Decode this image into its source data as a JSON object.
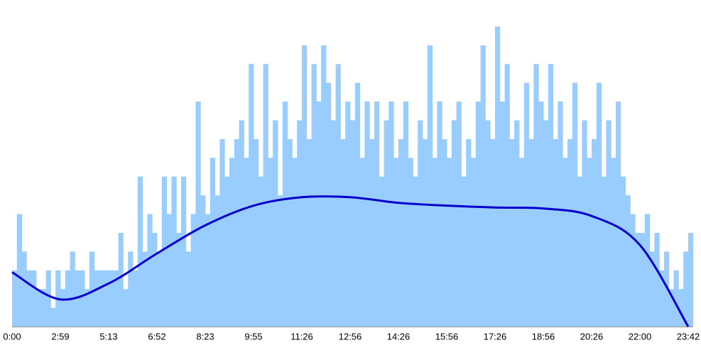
{
  "chart_data": {
    "type": "bar",
    "categories": [
      "0:00",
      null,
      null,
      null,
      null,
      null,
      null,
      null,
      null,
      null,
      "2:59",
      null,
      null,
      null,
      null,
      null,
      null,
      null,
      null,
      null,
      "5:13",
      null,
      null,
      null,
      null,
      null,
      null,
      null,
      null,
      null,
      "6:52",
      null,
      null,
      null,
      null,
      null,
      null,
      null,
      null,
      null,
      "8:23",
      null,
      null,
      null,
      null,
      null,
      null,
      null,
      null,
      null,
      "9:55",
      null,
      null,
      null,
      null,
      null,
      null,
      null,
      null,
      null,
      "11:26",
      null,
      null,
      null,
      null,
      null,
      null,
      null,
      null,
      null,
      "12:56",
      null,
      null,
      null,
      null,
      null,
      null,
      null,
      null,
      null,
      "14:26",
      null,
      null,
      null,
      null,
      null,
      null,
      null,
      null,
      null,
      "15:56",
      null,
      null,
      null,
      null,
      null,
      null,
      null,
      null,
      null,
      "17:26",
      null,
      null,
      null,
      null,
      null,
      null,
      null,
      null,
      null,
      "18:56",
      null,
      null,
      null,
      null,
      null,
      null,
      null,
      null,
      null,
      "20:26",
      null,
      null,
      null,
      null,
      null,
      null,
      null,
      null,
      null,
      "22:00",
      null,
      null,
      null,
      null,
      null,
      null,
      null,
      null,
      null,
      "23:42"
    ],
    "series": [
      {
        "color": "#99ccff",
        "values": [
          3,
          6,
          4,
          3,
          3,
          2,
          2,
          3,
          1,
          3,
          2,
          3,
          4,
          3,
          3,
          2,
          4,
          3,
          3,
          3,
          3,
          3,
          5,
          2,
          4,
          3,
          8,
          4,
          6,
          5,
          4,
          8,
          6,
          8,
          5,
          8,
          4,
          6,
          12,
          7,
          6,
          9,
          7,
          10,
          8,
          9,
          10,
          11,
          9,
          14,
          10,
          8,
          14,
          9,
          11,
          7,
          12,
          10,
          9,
          11,
          15,
          10,
          14,
          12,
          15,
          13,
          11,
          14,
          10,
          12,
          11,
          13,
          9,
          12,
          10,
          12,
          8,
          11,
          12,
          9,
          10,
          12,
          9,
          8,
          11,
          10,
          15,
          9,
          12,
          10,
          9,
          11,
          12,
          8,
          10,
          9,
          12,
          15,
          11,
          10,
          16,
          12,
          14,
          10,
          11,
          9,
          13,
          10,
          14,
          12,
          11,
          14,
          10,
          12,
          9,
          10,
          13,
          8,
          11,
          9,
          10,
          13,
          8,
          11,
          9,
          12,
          8,
          7,
          6,
          5,
          5,
          6,
          4,
          5,
          3,
          4,
          2,
          3,
          2,
          4,
          5
        ]
      },
      {
        "type": "line",
        "color": "#0000cc",
        "x": [
          0,
          10,
          20,
          30,
          40,
          50,
          60,
          70,
          80,
          90,
          100,
          110,
          120,
          130,
          140
        ],
        "values": [
          2.9,
          1.45,
          2.3,
          3.9,
          5.4,
          6.45,
          6.9,
          6.9,
          6.6,
          6.45,
          6.35,
          6.3,
          5.9,
          4.35,
          0
        ]
      }
    ],
    "ylim": [
      0,
      17
    ]
  }
}
